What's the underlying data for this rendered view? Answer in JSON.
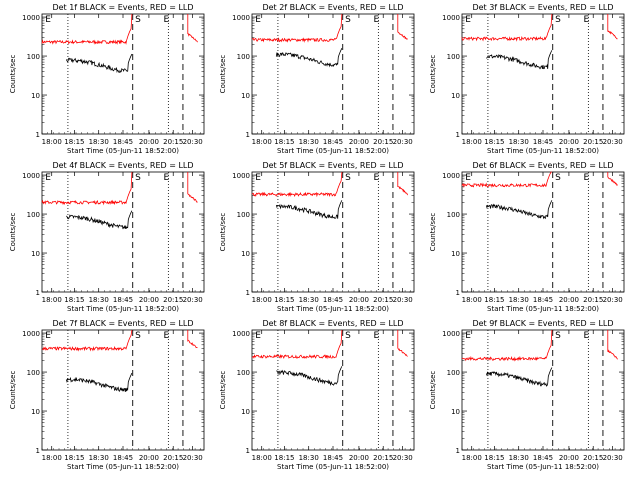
{
  "chart_data": {
    "type": "line",
    "ylabel": "Counts/sec",
    "xlabel": "Start Time (05-Jun-11 18:52:00)",
    "y_scale": "log",
    "ylim": [
      1,
      1200
    ],
    "y_ticks": [
      1,
      10,
      100,
      1000
    ],
    "y_tick_labels": [
      "1",
      "10",
      "100",
      "1000"
    ],
    "x_ticks": [
      "18:00",
      "18:15",
      "18:30",
      "18:45",
      "20:00",
      "20:15",
      "20:30"
    ],
    "markers": [
      "E",
      "S",
      "E"
    ],
    "colors": {
      "events": "#000000",
      "lld": "#ff0000"
    },
    "panels": [
      {
        "title": "Det 1f BLACK = Events, RED = LLD",
        "events_level": 60,
        "lld_level": 230,
        "lld_jump": 1000
      },
      {
        "title": "Det 2f BLACK = Events, RED = LLD",
        "events_level": 85,
        "lld_level": 260,
        "lld_jump": 1000
      },
      {
        "title": "Det 3f BLACK = Events, RED = LLD",
        "events_level": 75,
        "lld_level": 280,
        "lld_jump": 1000
      },
      {
        "title": "Det 4f BLACK = Events, RED = LLD",
        "events_level": 65,
        "lld_level": 200,
        "lld_jump": 1000
      },
      {
        "title": "Det 5f BLACK = Events, RED = LLD",
        "events_level": 120,
        "lld_level": 320,
        "lld_jump": 1000
      },
      {
        "title": "Det 6f BLACK = Events, RED = LLD",
        "events_level": 120,
        "lld_level": 550,
        "lld_jump": 1000
      },
      {
        "title": "Det 7f BLACK = Events, RED = LLD",
        "events_level": 50,
        "lld_level": 400,
        "lld_jump": 1000
      },
      {
        "title": "Det 8f BLACK = Events, RED = LLD",
        "events_level": 75,
        "lld_level": 250,
        "lld_jump": 1000
      },
      {
        "title": "Det 9f BLACK = Events, RED = LLD",
        "events_level": 70,
        "lld_level": 220,
        "lld_jump": 1000
      }
    ]
  }
}
